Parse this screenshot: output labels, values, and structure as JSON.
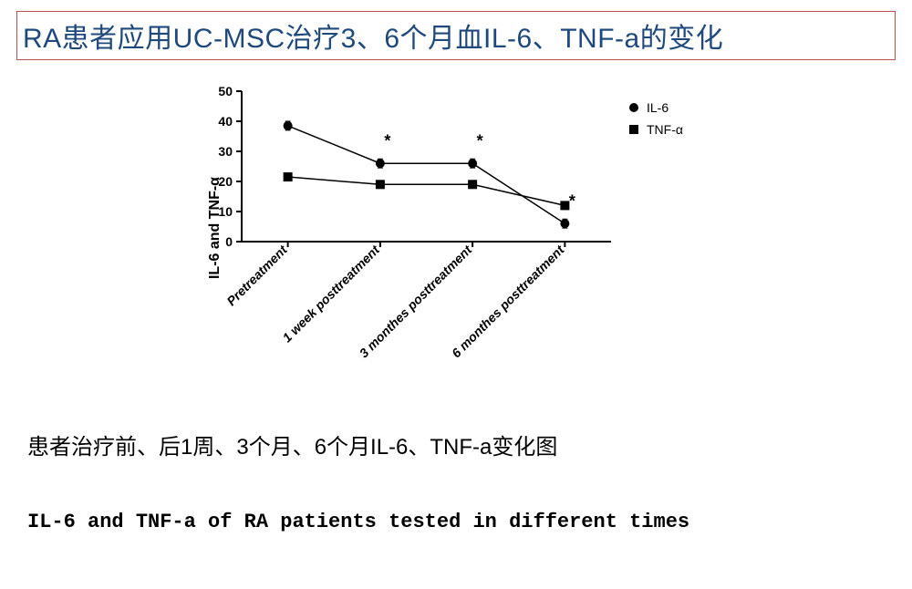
{
  "title": "RA患者应用UC-MSC治疗3、6个月血IL-6、TNF-a的变化",
  "caption_cn": "患者治疗前、后1周、3个月、6个月IL-6、TNF-a变化图",
  "caption_en": "IL-6 and TNF-a of RA patients tested in different times",
  "chart": {
    "type": "line",
    "ylabel": "IL-6 and TNF-α",
    "ylim": [
      0,
      50
    ],
    "ytick_step": 10,
    "yticks": [
      0,
      10,
      20,
      30,
      40,
      50
    ],
    "categories": [
      "Pretreatment",
      "1 week posttreatment",
      "3 monthes posttreatment",
      "6 monthes posttreatment"
    ],
    "series": [
      {
        "name": "IL-6",
        "marker": "circle",
        "marker_size": 5,
        "color": "#000000",
        "values": [
          38.5,
          26,
          26,
          6
        ],
        "err": [
          1.5,
          1.5,
          1.5,
          1.5
        ],
        "stars": [
          false,
          true,
          true,
          true
        ]
      },
      {
        "name": "TNF-α",
        "marker": "square",
        "marker_size": 5,
        "color": "#000000",
        "values": [
          21.5,
          19,
          19,
          12
        ],
        "err": [
          1.0,
          1.0,
          1.0,
          1.0
        ],
        "stars": [
          false,
          false,
          false,
          false
        ]
      }
    ],
    "axis_line_width": 2,
    "tick_length": 6,
    "background_color": "#ffffff",
    "label_fontsize": 16,
    "tick_fontsize": 14,
    "legend_fontsize": 14,
    "star_symbol": "*",
    "star_fontsize": 18
  }
}
